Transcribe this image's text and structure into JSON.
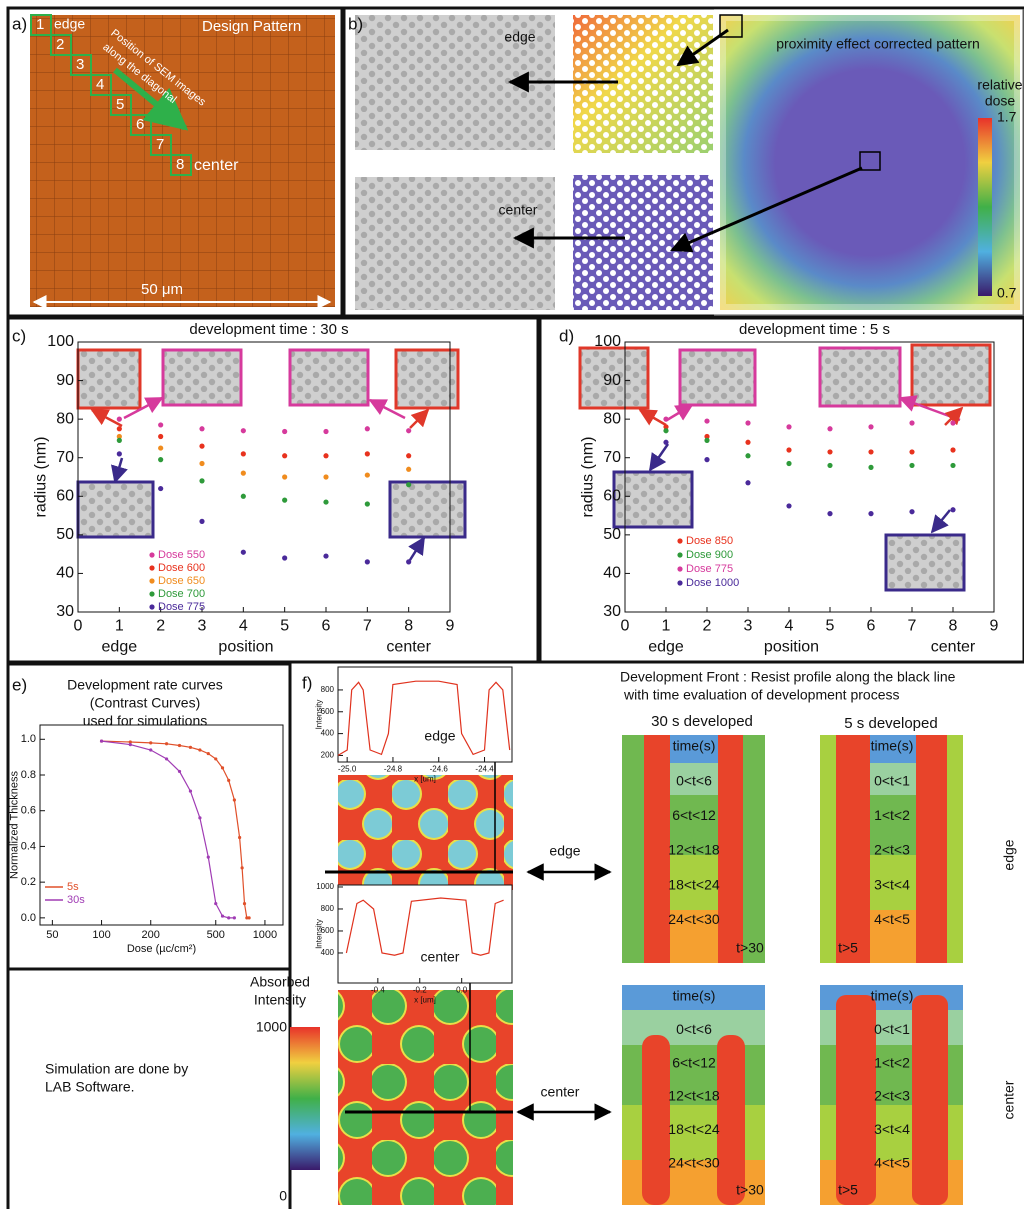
{
  "panels": {
    "a": {
      "label": "a)",
      "title": "Design Pattern",
      "markers": [
        "1",
        "2",
        "3",
        "4",
        "5",
        "6",
        "7",
        "8"
      ],
      "edge": "edge",
      "center": "center",
      "diagonal_note": [
        "Position of SEM images",
        "along the diagonal"
      ],
      "scale": "50 μm"
    },
    "b": {
      "label": "b)",
      "edge": "edge",
      "center": "center",
      "title": "proximity effect corrected pattern",
      "colorbar_title": [
        "relative",
        "dose"
      ],
      "colorbar_max": 1.7,
      "colorbar_min": 0.7
    },
    "f": {
      "label": "f)",
      "title": [
        "Development Front : Resist profile along the black line",
        "with time evaluation of development process"
      ],
      "col_titles": [
        "30 s developed",
        "5 s developed"
      ],
      "row_titles": [
        "edge",
        "center"
      ],
      "pattern_labels": [
        "edge",
        "center"
      ],
      "profiles": [
        [
          "time(s)",
          "0<t<6",
          "6<t<12",
          "12<t<18",
          "18<t<24",
          "24<t<30",
          "t>30"
        ],
        [
          "time(s)",
          "0<t<1",
          "1<t<2",
          "2<t<3",
          "3<t<4",
          "4<t<5",
          "t>5"
        ],
        [
          "time(s)",
          "0<t<6",
          "6<t<12",
          "12<t<18",
          "18<t<24",
          "24<t<30",
          "t>30"
        ],
        [
          "time(s)",
          "0<t<1",
          "1<t<2",
          "2<t<3",
          "3<t<4",
          "4<t<5",
          "t>5"
        ]
      ],
      "colorbar_title": [
        "Absorbed",
        "Intensity"
      ],
      "colorbar_max": 1000,
      "colorbar_min": 0
    },
    "notes": [
      "Simulation are done by",
      "LAB Software."
    ]
  },
  "chart_data": [
    {
      "type": "scatter",
      "panel_label": "c)",
      "title": "development time : 30 s",
      "x_label": "position",
      "y_label": "radius (nm)",
      "x": [
        1,
        2,
        3,
        4,
        5,
        6,
        7,
        8
      ],
      "x_annotations": [
        {
          "value": 1,
          "label": "edge"
        },
        {
          "value": 8,
          "label": "center"
        }
      ],
      "xlim": [
        0,
        9
      ],
      "ylim": [
        30,
        100
      ],
      "xticks": [
        0,
        1,
        2,
        3,
        4,
        5,
        6,
        7,
        8,
        9
      ],
      "yticks": [
        30,
        40,
        50,
        60,
        70,
        80,
        90,
        100
      ],
      "series": [
        {
          "name": "Dose 550",
          "color": "#d63a9c",
          "values": [
            80,
            78.5,
            77.5,
            77,
            76.8,
            76.8,
            77.5,
            77
          ]
        },
        {
          "name": "Dose 600",
          "color": "#e8321e",
          "values": [
            77.5,
            75.5,
            73,
            71,
            70.5,
            70.5,
            71,
            70.5
          ]
        },
        {
          "name": "Dose 650",
          "color": "#f08c1e",
          "values": [
            75.5,
            72.5,
            68.5,
            66,
            65,
            65,
            65.5,
            67
          ]
        },
        {
          "name": "Dose 700",
          "color": "#2e9a3a",
          "values": [
            74.5,
            69.5,
            64,
            60,
            59,
            58.5,
            58,
            63
          ]
        },
        {
          "name": "Dose 775",
          "color": "#4a2a9a",
          "values": [
            71,
            62,
            53.5,
            45.5,
            44,
            44.5,
            43,
            43
          ]
        }
      ]
    },
    {
      "type": "scatter",
      "panel_label": "d)",
      "title": "development time : 5 s",
      "x_label": "position",
      "y_label": "radius (nm)",
      "x": [
        1,
        2,
        3,
        4,
        5,
        6,
        7,
        8
      ],
      "x_annotations": [
        {
          "value": 1,
          "label": "edge"
        },
        {
          "value": 8,
          "label": "center"
        }
      ],
      "xlim": [
        0,
        9
      ],
      "ylim": [
        30,
        100
      ],
      "xticks": [
        0,
        1,
        2,
        3,
        4,
        5,
        6,
        7,
        8,
        9
      ],
      "yticks": [
        30,
        40,
        50,
        60,
        70,
        80,
        90,
        100
      ],
      "series": [
        {
          "name": "Dose 850",
          "color": "#e8321e",
          "values": [
            78,
            75.5,
            74,
            72,
            71.5,
            71.5,
            71.5,
            72
          ]
        },
        {
          "name": "Dose 900",
          "color": "#2e9a3a",
          "values": [
            77,
            74.5,
            70.5,
            68.5,
            68,
            67.5,
            68,
            68
          ]
        },
        {
          "name": "Dose 775",
          "color": "#d63a9c",
          "values": [
            80,
            79.5,
            79,
            78,
            77.5,
            78,
            79,
            79
          ]
        },
        {
          "name": "Dose 1000",
          "color": "#4a2a9a",
          "values": [
            74,
            69.5,
            63.5,
            57.5,
            55.5,
            55.5,
            56,
            56.5
          ]
        }
      ]
    },
    {
      "type": "line",
      "panel_label": "e)",
      "title": [
        "Development rate curves",
        "(Contrast Curves)",
        "used for simulations"
      ],
      "x_label": "Dose (µc/cm²)",
      "y_label": "Normalized Thickness",
      "xscale": "log",
      "markers": true,
      "xlim": [
        42,
        1290
      ],
      "ylim": [
        -0.04,
        1.08
      ],
      "xticks": [
        50,
        100,
        200,
        500,
        1000
      ],
      "yticks": [
        {
          "value": 0,
          "label": "0.0"
        },
        0.2,
        0.4,
        0.6,
        0.8,
        {
          "value": 1,
          "label": "1.0"
        }
      ],
      "series": [
        {
          "name": "5s",
          "color": "#e0502a",
          "x": [
            100,
            150,
            200,
            250,
            300,
            350,
            400,
            450,
            500,
            550,
            600,
            650,
            700,
            725,
            750,
            775,
            800
          ],
          "values": [
            0.99,
            0.985,
            0.98,
            0.975,
            0.965,
            0.955,
            0.94,
            0.92,
            0.89,
            0.84,
            0.77,
            0.66,
            0.45,
            0.28,
            0.08,
            0,
            0
          ]
        },
        {
          "name": "30s",
          "color": "#a03cb4",
          "x": [
            100,
            150,
            200,
            250,
            300,
            350,
            400,
            450,
            500,
            550,
            600,
            650
          ],
          "values": [
            0.99,
            0.97,
            0.94,
            0.89,
            0.82,
            0.71,
            0.56,
            0.34,
            0.08,
            0.01,
            0,
            0
          ]
        }
      ]
    },
    {
      "type": "line",
      "annotation": "edge",
      "x_label": "x [um]",
      "y_label": "Intensity",
      "xlim": [
        -25.04,
        -24.28
      ],
      "ylim": [
        140,
        1010
      ],
      "xticks": [
        {
          "value": -25,
          "label": "-25.0"
        },
        -24.8,
        -24.6,
        -24.4
      ],
      "yticks": [
        200,
        400,
        600,
        800
      ],
      "series": [
        {
          "color": "#e0321e",
          "x": [
            -25.04,
            -25.0,
            -24.98,
            -24.95,
            -24.93,
            -24.9,
            -24.85,
            -24.82,
            -24.8,
            -24.7,
            -24.6,
            -24.52,
            -24.5,
            -24.45,
            -24.4,
            -24.38,
            -24.35,
            -24.32,
            -24.29
          ],
          "values": [
            200,
            250,
            800,
            870,
            800,
            250,
            210,
            400,
            850,
            880,
            880,
            850,
            400,
            210,
            250,
            800,
            870,
            800,
            250
          ]
        }
      ]
    },
    {
      "type": "line",
      "annotation": "center",
      "x_label": "x [um]",
      "y_label": "Intensity",
      "xlim": [
        -0.59,
        0.24
      ],
      "ylim": [
        127,
        1018
      ],
      "xticks": [
        -0.4,
        -0.2,
        {
          "value": 0,
          "label": "0.0"
        }
      ],
      "yticks": [
        400,
        600,
        800,
        1000
      ],
      "series": [
        {
          "color": "#e0321e",
          "x": [
            -0.55,
            -0.5,
            -0.47,
            -0.42,
            -0.38,
            -0.32,
            -0.28,
            -0.24,
            -0.1,
            0.02,
            0.05,
            0.09,
            0.13,
            0.16,
            0.2
          ],
          "values": [
            400,
            850,
            880,
            800,
            400,
            380,
            400,
            870,
            900,
            880,
            400,
            380,
            400,
            850,
            880
          ]
        }
      ]
    }
  ]
}
